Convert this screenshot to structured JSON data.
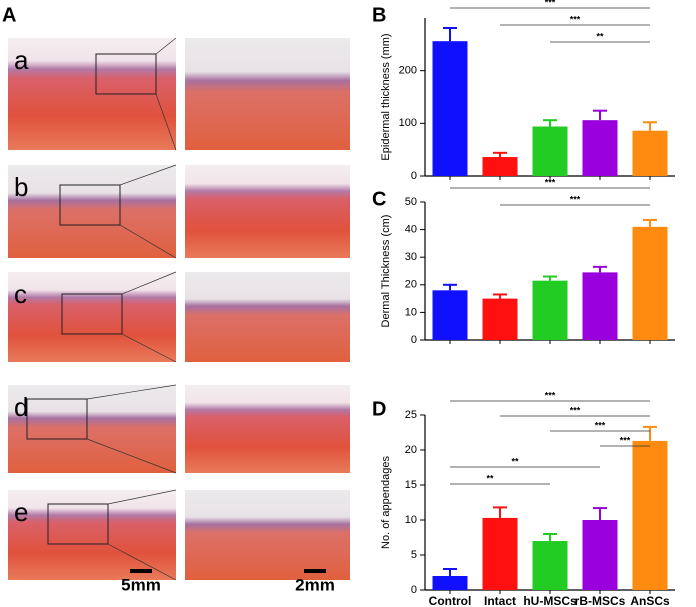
{
  "histology": {
    "label": "A",
    "rows": [
      "a",
      "b",
      "c",
      "d",
      "e"
    ],
    "scale_bars": [
      "5mm",
      "2mm"
    ]
  },
  "chart_data": [
    {
      "type": "bar",
      "panel_label": "B",
      "ylabel": "Epidermal  thickness (mm)",
      "categories": [
        null,
        null,
        null,
        null,
        null
      ],
      "values": [
        256,
        36,
        94,
        106,
        86
      ],
      "errors": [
        25,
        8,
        12,
        18,
        16
      ],
      "colors": [
        "#1010ff",
        "#ff1010",
        "#22cc22",
        "#9900dd",
        "#ff8a10"
      ],
      "ylim": [
        0,
        300
      ],
      "yticks": [
        0,
        100,
        200
      ],
      "brackets": [
        {
          "from": 0,
          "to": 4,
          "label": "***"
        },
        {
          "from": 1,
          "to": 4,
          "label": "***"
        },
        {
          "from": 2,
          "to": 4,
          "label": "**"
        }
      ]
    },
    {
      "type": "bar",
      "panel_label": "C",
      "ylabel": "Dermal Thickness (cm)",
      "categories": [
        null,
        null,
        null,
        null,
        null
      ],
      "values": [
        18,
        15,
        21.5,
        24.5,
        41
      ],
      "errors": [
        2,
        1.5,
        1.5,
        2,
        2.5
      ],
      "colors": [
        "#1010ff",
        "#ff1010",
        "#22cc22",
        "#9900dd",
        "#ff8a10"
      ],
      "ylim": [
        0,
        50
      ],
      "yticks": [
        0,
        10,
        20,
        30,
        40,
        50
      ],
      "brackets": [
        {
          "from": 0,
          "to": 4,
          "label": "***"
        },
        {
          "from": 1,
          "to": 4,
          "label": "***"
        }
      ]
    },
    {
      "type": "bar",
      "panel_label": "D",
      "ylabel": "No. of appendages",
      "categories": [
        "Control",
        "Intact",
        "hU-MSCs",
        "rB-MSCs",
        "AnSCs"
      ],
      "values": [
        2,
        10.3,
        7,
        10,
        21.3
      ],
      "errors": [
        1,
        1.5,
        1,
        1.7,
        2
      ],
      "colors": [
        "#1010ff",
        "#ff1010",
        "#22cc22",
        "#9900dd",
        "#ff8a10"
      ],
      "ylim": [
        0,
        25
      ],
      "yticks": [
        0,
        5,
        10,
        15,
        20,
        25
      ],
      "brackets": [
        {
          "from": 0,
          "to": 4,
          "label": "***"
        },
        {
          "from": 1,
          "to": 4,
          "label": "***"
        },
        {
          "from": 2,
          "to": 4,
          "label": "***"
        },
        {
          "from": 3,
          "to": 4,
          "label": "***"
        },
        {
          "from": 0,
          "to": 3,
          "label": "**"
        },
        {
          "from": 0,
          "to": 2,
          "label": "**"
        }
      ]
    }
  ]
}
